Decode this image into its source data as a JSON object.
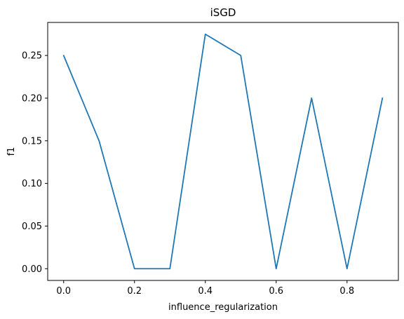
{
  "chart_data": {
    "type": "line",
    "title": "iSGD",
    "xlabel": "influence_regularization",
    "ylabel": "f1",
    "x": [
      0.0,
      0.1,
      0.2,
      0.3,
      0.4,
      0.5,
      0.6,
      0.7,
      0.8,
      0.9
    ],
    "series": [
      {
        "values": [
          0.25,
          0.15,
          0.0,
          0.0,
          0.275,
          0.25,
          0.0,
          0.2,
          0.0,
          0.2
        ]
      }
    ],
    "xlim": [
      -0.045,
      0.945
    ],
    "ylim": [
      -0.01375,
      0.28875
    ],
    "xticks": [
      0.0,
      0.2,
      0.4,
      0.6,
      0.8
    ],
    "xtick_labels": [
      "0.0",
      "0.2",
      "0.4",
      "0.6",
      "0.8"
    ],
    "yticks": [
      0.0,
      0.05,
      0.1,
      0.15,
      0.2,
      0.25
    ],
    "ytick_labels": [
      "0.00",
      "0.05",
      "0.10",
      "0.15",
      "0.20",
      "0.25"
    ],
    "grid": false,
    "line_color": "#1f77b4"
  }
}
